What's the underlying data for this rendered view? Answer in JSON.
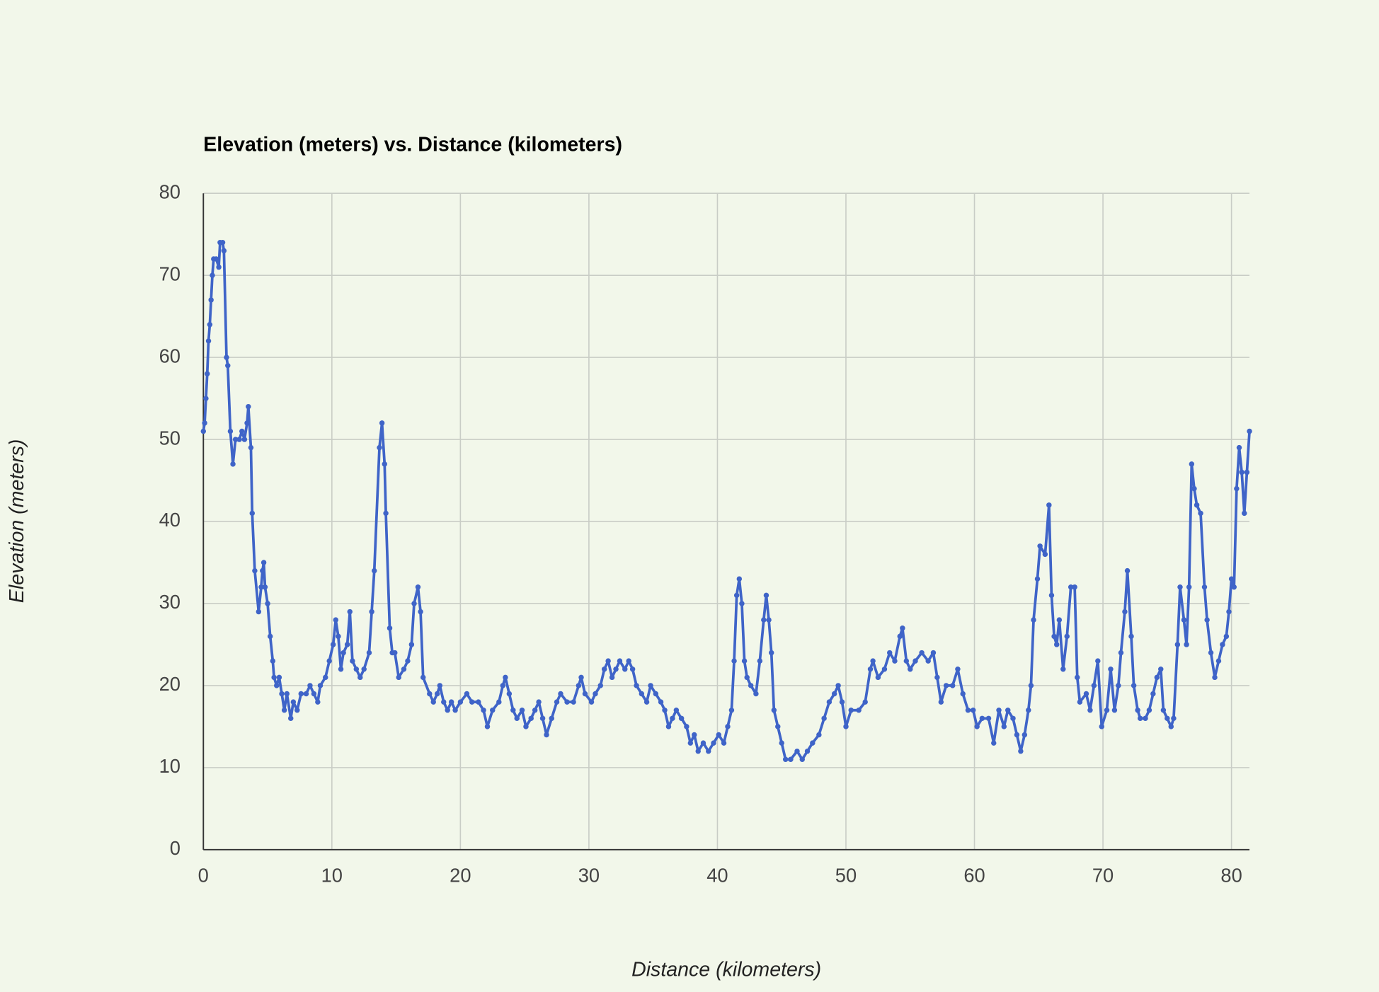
{
  "chart_data": {
    "type": "line",
    "title": "Elevation (meters) vs. Distance (kilometers)",
    "x_label": "Distance (kilometers)",
    "y_label": "Elevation (meters)",
    "color": "#3f64c8",
    "grid": true,
    "xlim": [
      0,
      81.4
    ],
    "ylim": [
      0,
      80
    ],
    "xticks": [
      0,
      10,
      20,
      30,
      40,
      50,
      60,
      70,
      80
    ],
    "yticks": [
      0,
      10,
      20,
      30,
      40,
      50,
      60,
      70,
      80
    ],
    "x": [
      0,
      0.1,
      0.2,
      0.3,
      0.4,
      0.5,
      0.6,
      0.7,
      0.8,
      1.0,
      1.2,
      1.3,
      1.5,
      1.6,
      1.8,
      1.9,
      2.1,
      2.3,
      2.5,
      2.8,
      3.0,
      3.2,
      3.4,
      3.5,
      3.7,
      3.8,
      4.0,
      4.3,
      4.5,
      4.6,
      4.7,
      4.8,
      5.0,
      5.2,
      5.4,
      5.5,
      5.7,
      5.9,
      6.1,
      6.3,
      6.5,
      6.8,
      7.0,
      7.3,
      7.6,
      8.0,
      8.3,
      8.6,
      8.9,
      9.1,
      9.5,
      9.8,
      10.1,
      10.3,
      10.5,
      10.7,
      10.9,
      11.2,
      11.4,
      11.6,
      11.9,
      12.2,
      12.5,
      12.9,
      13.1,
      13.3,
      13.7,
      13.9,
      14.1,
      14.2,
      14.5,
      14.7,
      14.9,
      15.2,
      15.6,
      15.9,
      16.2,
      16.4,
      16.7,
      16.9,
      17.1,
      17.6,
      17.9,
      18.2,
      18.4,
      18.7,
      19.0,
      19.3,
      19.6,
      20.0,
      20.5,
      20.9,
      21.4,
      21.8,
      22.1,
      22.5,
      23.0,
      23.3,
      23.5,
      23.8,
      24.1,
      24.4,
      24.8,
      25.1,
      25.5,
      25.8,
      26.1,
      26.4,
      26.7,
      27.1,
      27.5,
      27.8,
      28.3,
      28.8,
      29.2,
      29.4,
      29.7,
      30.2,
      30.5,
      30.9,
      31.2,
      31.5,
      31.8,
      32.1,
      32.4,
      32.8,
      33.1,
      33.4,
      33.7,
      34.1,
      34.5,
      34.8,
      35.2,
      35.6,
      35.9,
      36.2,
      36.5,
      36.8,
      37.2,
      37.6,
      37.9,
      38.2,
      38.5,
      38.9,
      39.3,
      39.7,
      40.1,
      40.5,
      40.8,
      41.1,
      41.3,
      41.5,
      41.7,
      41.9,
      42.1,
      42.3,
      42.6,
      43.0,
      43.3,
      43.6,
      43.8,
      44.0,
      44.2,
      44.4,
      44.7,
      45.0,
      45.3,
      45.7,
      46.2,
      46.6,
      47.0,
      47.4,
      47.9,
      48.3,
      48.7,
      49.1,
      49.4,
      49.7,
      50.0,
      50.4,
      51.0,
      51.5,
      51.9,
      52.1,
      52.5,
      53.0,
      53.4,
      53.8,
      54.2,
      54.4,
      54.7,
      55.0,
      55.4,
      55.9,
      56.4,
      56.8,
      57.1,
      57.4,
      57.8,
      58.3,
      58.7,
      59.1,
      59.5,
      59.9,
      60.2,
      60.6,
      61.1,
      61.5,
      61.9,
      62.3,
      62.6,
      63.0,
      63.3,
      63.6,
      63.9,
      64.2,
      64.4,
      64.6,
      64.9,
      65.1,
      65.5,
      65.8,
      66.0,
      66.2,
      66.4,
      66.6,
      66.9,
      67.2,
      67.5,
      67.8,
      68.0,
      68.2,
      68.7,
      69.0,
      69.3,
      69.6,
      69.9,
      70.3,
      70.6,
      70.9,
      71.2,
      71.4,
      71.7,
      71.9,
      72.2,
      72.4,
      72.7,
      72.9,
      73.3,
      73.6,
      73.9,
      74.2,
      74.5,
      74.7,
      75.0,
      75.3,
      75.5,
      75.8,
      76.0,
      76.3,
      76.5,
      76.7,
      76.9,
      77.1,
      77.3,
      77.6,
      77.9,
      78.1,
      78.4,
      78.7,
      79.0,
      79.3,
      79.6,
      79.8,
      80.0,
      80.2,
      80.4,
      80.6,
      80.8,
      81.0,
      81.2,
      81.4
    ],
    "values": [
      51,
      52,
      55,
      58,
      62,
      64,
      67,
      70,
      72,
      72,
      71,
      74,
      74,
      73,
      60,
      59,
      51,
      47,
      50,
      50,
      51,
      50,
      52,
      54,
      49,
      41,
      34,
      29,
      32,
      34,
      35,
      32,
      30,
      26,
      23,
      21,
      20,
      21,
      19,
      17,
      19,
      16,
      18,
      17,
      19,
      19,
      20,
      19,
      18,
      20,
      21,
      23,
      25,
      28,
      26,
      22,
      24,
      25,
      29,
      23,
      22,
      21,
      22,
      24,
      29,
      34,
      49,
      52,
      47,
      41,
      27,
      24,
      24,
      21,
      22,
      23,
      25,
      30,
      32,
      29,
      21,
      19,
      18,
      19,
      20,
      18,
      17,
      18,
      17,
      18,
      19,
      18,
      18,
      17,
      15,
      17,
      18,
      20,
      21,
      19,
      17,
      16,
      17,
      15,
      16,
      17,
      18,
      16,
      14,
      16,
      18,
      19,
      18,
      18,
      20,
      21,
      19,
      18,
      19,
      20,
      22,
      23,
      21,
      22,
      23,
      22,
      23,
      22,
      20,
      19,
      18,
      20,
      19,
      18,
      17,
      15,
      16,
      17,
      16,
      15,
      13,
      14,
      12,
      13,
      12,
      13,
      14,
      13,
      15,
      17,
      23,
      31,
      33,
      30,
      23,
      21,
      20,
      19,
      23,
      28,
      31,
      28,
      24,
      17,
      15,
      13,
      11,
      11,
      12,
      11,
      12,
      13,
      14,
      16,
      18,
      19,
      20,
      18,
      15,
      17,
      17,
      18,
      22,
      23,
      21,
      22,
      24,
      23,
      26,
      27,
      23,
      22,
      23,
      24,
      23,
      24,
      21,
      18,
      20,
      20,
      22,
      19,
      17,
      17,
      15,
      16,
      16,
      13,
      17,
      15,
      17,
      16,
      14,
      12,
      14,
      17,
      20,
      28,
      33,
      37,
      36,
      42,
      31,
      26,
      25,
      28,
      22,
      26,
      32,
      32,
      21,
      18,
      19,
      17,
      20,
      23,
      15,
      17,
      22,
      17,
      20,
      24,
      29,
      34,
      26,
      20,
      17,
      16,
      16,
      17,
      19,
      21,
      22,
      17,
      16,
      15,
      16,
      25,
      32,
      28,
      25,
      32,
      47,
      44,
      42,
      41,
      32,
      28,
      24,
      21,
      23,
      25,
      26,
      29,
      33,
      32,
      44,
      49,
      46,
      41,
      46,
      51
    ]
  }
}
